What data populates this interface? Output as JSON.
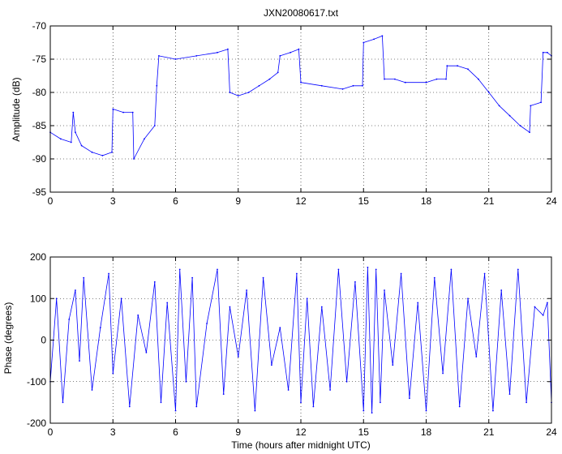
{
  "colors": {
    "series": "#0000ff",
    "axes": "#000000",
    "background": "#ffffff"
  },
  "chart_data": [
    {
      "type": "line",
      "title": "JXN20080617.txt",
      "xlabel": "",
      "ylabel": "Amplitude (dB)",
      "xlim": [
        0,
        24
      ],
      "ylim": [
        -95,
        -70
      ],
      "xticks": [
        0,
        3,
        6,
        9,
        12,
        15,
        18,
        21,
        24
      ],
      "yticks": [
        -95,
        -90,
        -85,
        -80,
        -75,
        -70
      ],
      "grid": true,
      "series": [
        {
          "x": [
            0,
            0.5,
            1.0,
            1.1,
            1.2,
            1.5,
            2.0,
            2.5,
            2.95,
            3.0,
            3.5,
            3.95,
            4.0,
            4.5,
            5.0,
            5.1,
            5.2,
            6.0,
            7.0,
            8.0,
            8.5,
            8.6,
            9.0,
            9.5,
            10.0,
            10.5,
            10.9,
            11.0,
            11.5,
            11.9,
            12.0,
            13.0,
            14.0,
            14.5,
            14.95,
            15.0,
            15.5,
            15.9,
            16.0,
            16.5,
            17.0,
            18.0,
            18.5,
            18.95,
            19.0,
            19.5,
            20.0,
            20.5,
            21.0,
            21.5,
            22.0,
            22.5,
            22.95,
            23.0,
            23.5,
            23.6,
            23.8,
            24.0
          ],
          "y": [
            -86,
            -87,
            -87.5,
            -83,
            -86,
            -88,
            -89,
            -89.5,
            -89,
            -82.5,
            -83,
            -83,
            -90,
            -87,
            -85,
            -79,
            -74.5,
            -75,
            -74.5,
            -74,
            -73.5,
            -80,
            -80.5,
            -80,
            -79,
            -78,
            -77,
            -74.5,
            -74,
            -73.5,
            -78.5,
            -79,
            -79.5,
            -79,
            -79,
            -72.5,
            -72,
            -71.5,
            -78,
            -78,
            -78.5,
            -78.5,
            -78,
            -78,
            -76,
            -76,
            -76.5,
            -78,
            -80,
            -82,
            -83.5,
            -85,
            -86,
            -82,
            -81.5,
            -74,
            -74,
            -74.5
          ]
        }
      ]
    },
    {
      "type": "line",
      "title": "",
      "xlabel": "Time (hours after midnight UTC)",
      "ylabel": "Phase (degrees)",
      "xlim": [
        0,
        24
      ],
      "ylim": [
        -200,
        200
      ],
      "xticks": [
        0,
        3,
        6,
        9,
        12,
        15,
        18,
        21,
        24
      ],
      "yticks": [
        -200,
        -100,
        0,
        100,
        200
      ],
      "grid": true,
      "series": [
        {
          "x": [
            0,
            0.3,
            0.6,
            0.9,
            1.2,
            1.4,
            1.6,
            2.0,
            2.4,
            2.8,
            3.0,
            3.4,
            3.8,
            4.2,
            4.6,
            5.0,
            5.3,
            5.6,
            6.0,
            6.2,
            6.5,
            6.8,
            7.0,
            7.5,
            8.0,
            8.3,
            8.6,
            9.0,
            9.4,
            9.8,
            10.2,
            10.6,
            11.0,
            11.4,
            11.8,
            12.0,
            12.3,
            12.6,
            13.0,
            13.4,
            13.8,
            14.2,
            14.6,
            15.0,
            15.2,
            15.4,
            15.6,
            15.8,
            16.0,
            16.4,
            16.8,
            17.2,
            17.6,
            18.0,
            18.4,
            18.8,
            19.2,
            19.6,
            20.0,
            20.4,
            20.8,
            21.2,
            21.6,
            22.0,
            22.4,
            22.8,
            23.2,
            23.6,
            23.8,
            24.0
          ],
          "y": [
            -100,
            100,
            -150,
            50,
            120,
            -50,
            150,
            -120,
            30,
            160,
            -80,
            100,
            -160,
            60,
            -30,
            140,
            -150,
            90,
            -170,
            170,
            -100,
            150,
            -160,
            40,
            170,
            -130,
            80,
            -40,
            120,
            -170,
            150,
            -60,
            30,
            -120,
            160,
            -150,
            100,
            -160,
            80,
            -120,
            170,
            -100,
            140,
            -170,
            175,
            -175,
            170,
            -150,
            120,
            -60,
            160,
            -140,
            90,
            -170,
            150,
            -80,
            170,
            -160,
            100,
            -40,
            160,
            -170,
            120,
            -130,
            170,
            -150,
            80,
            60,
            90,
            -150
          ]
        }
      ]
    }
  ]
}
